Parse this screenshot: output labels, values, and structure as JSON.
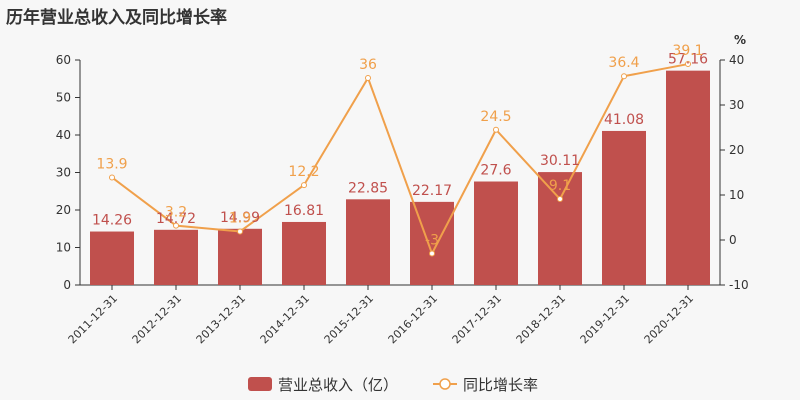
{
  "chart_data": {
    "type": "bar",
    "title": "历年营业总收入及同比增长率",
    "categories": [
      "2011-12-31",
      "2012-12-31",
      "2013-12-31",
      "2014-12-31",
      "2015-12-31",
      "2016-12-31",
      "2017-12-31",
      "2018-12-31",
      "2019-12-31",
      "2020-12-31"
    ],
    "series": [
      {
        "name": "营业总收入（亿）",
        "type": "bar",
        "axis": "left",
        "color": "#c0504d",
        "values": [
          14.26,
          14.72,
          14.99,
          16.81,
          22.85,
          22.17,
          27.6,
          30.11,
          41.08,
          57.16
        ],
        "labels": [
          "14.26",
          "14.72",
          "14.99",
          "16.81",
          "22.85",
          "22.17",
          "27.6",
          "30.11",
          "41.08",
          "57.16"
        ]
      },
      {
        "name": "同比增长率",
        "type": "line",
        "axis": "right",
        "color": "#f0a04b",
        "values": [
          13.9,
          3.2,
          1.9,
          12.2,
          36,
          -3,
          24.5,
          9.1,
          36.4,
          39.1
        ],
        "labels": [
          "13.9",
          "3.2",
          "1.9",
          "12.2",
          "36",
          "-3",
          "24.5",
          "9.1",
          "36.4",
          "39.1"
        ]
      }
    ],
    "y_left": {
      "range": [
        0,
        60
      ],
      "ticks": [
        "0",
        "10",
        "20",
        "30",
        "40",
        "50",
        "60"
      ]
    },
    "y_right": {
      "range": [
        -10,
        40
      ],
      "ticks": [
        "-10",
        "0",
        "10",
        "20",
        "30",
        "40"
      ],
      "unit": "%"
    },
    "grid": false,
    "legend_position": "bottom-center"
  }
}
